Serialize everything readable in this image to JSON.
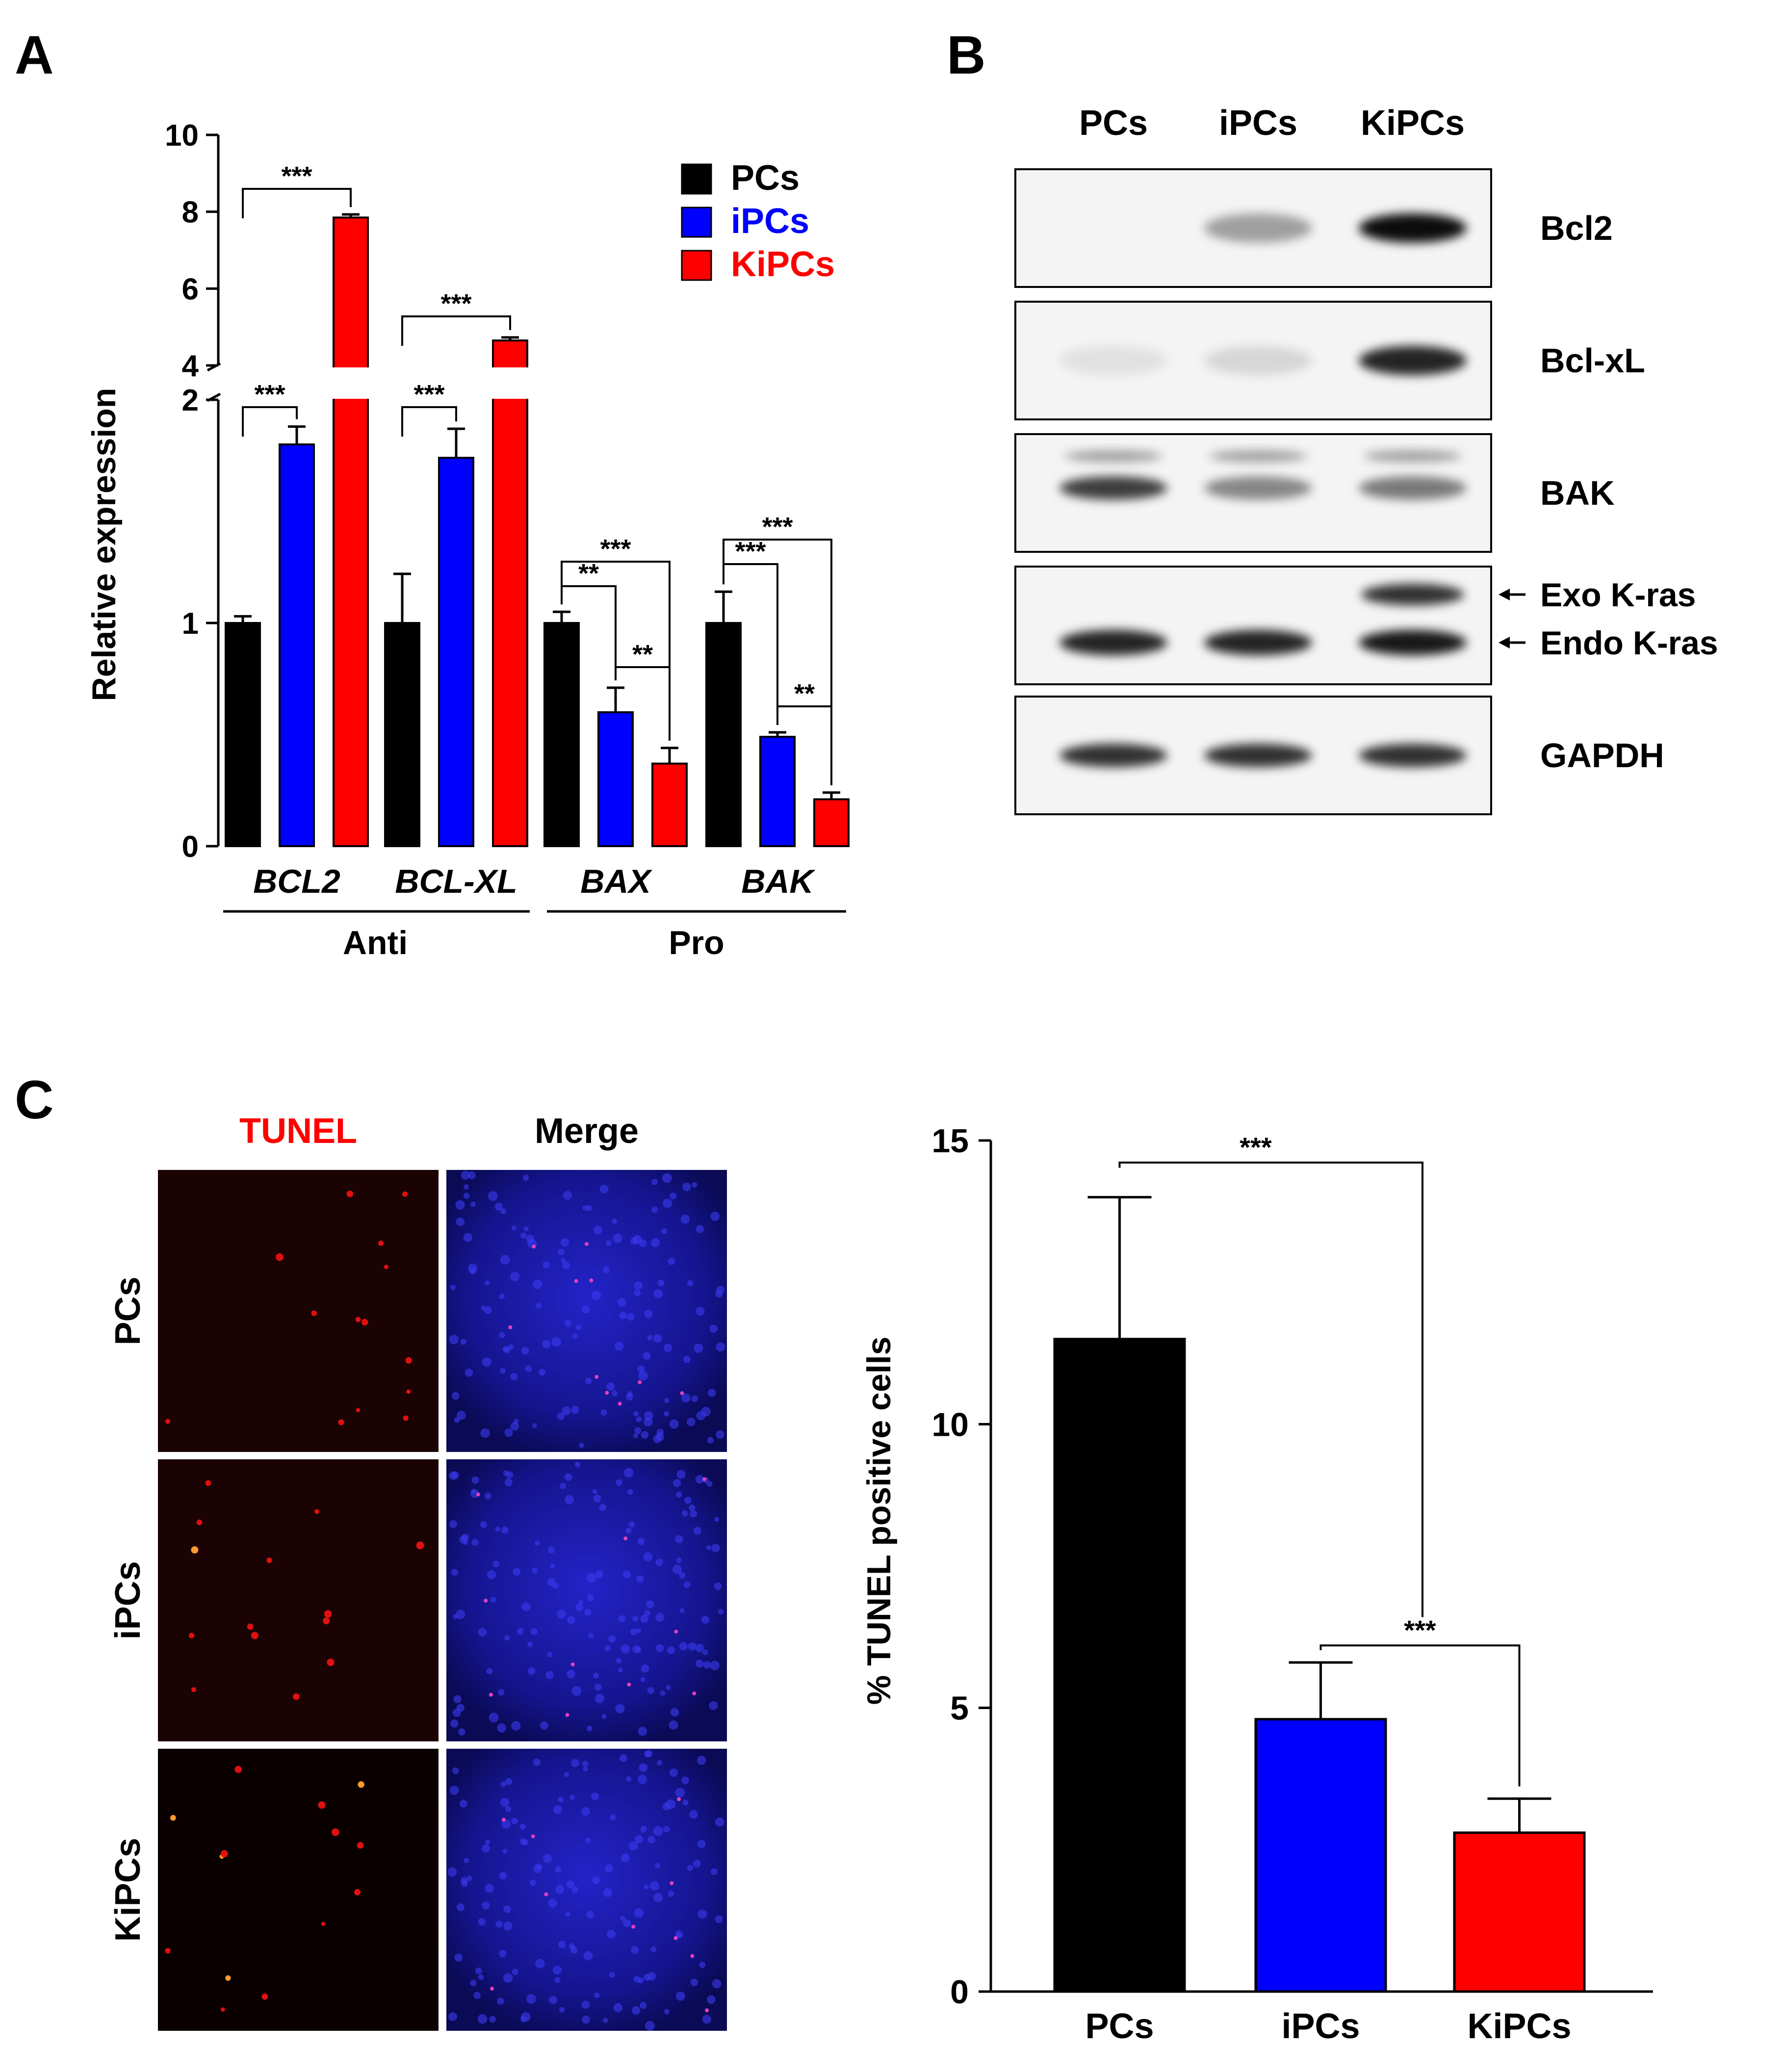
{
  "panels": {
    "a": "A",
    "b": "B",
    "c": "C"
  },
  "colors": {
    "PCs": "#000000",
    "iPCs": "#0000ff",
    "KiPCs": "#ff0000"
  },
  "chart_data": [
    {
      "panel": "A",
      "type": "bar",
      "ylabel": "Relative expression",
      "y_axis": {
        "broken": true,
        "lower_segment": {
          "range": [
            0,
            2
          ],
          "ticks": [
            "0",
            "1",
            "2"
          ]
        },
        "upper_segment": {
          "range": [
            4,
            10
          ],
          "ticks": [
            "4",
            "6",
            "8",
            "10"
          ]
        }
      },
      "legend": {
        "placement": "top-right",
        "entries": [
          "PCs",
          "iPCs",
          "KiPCs"
        ]
      },
      "categories": [
        "BCL2",
        "BCL-XL",
        "BAX",
        "BAK"
      ],
      "groups": [
        {
          "label": "Anti",
          "categories": [
            "BCL2",
            "BCL-XL"
          ]
        },
        {
          "label": "Pro",
          "categories": [
            "BAX",
            "BAK"
          ]
        }
      ],
      "series": [
        {
          "name": "PCs",
          "values": [
            1.0,
            1.0,
            1.0,
            1.0
          ],
          "errors": [
            0.03,
            0.22,
            0.05,
            0.14
          ]
        },
        {
          "name": "iPCs",
          "values": [
            1.8,
            1.74,
            0.6,
            0.49
          ],
          "errors": [
            0.08,
            0.13,
            0.11,
            0.02
          ]
        },
        {
          "name": "KiPCs",
          "values": [
            7.85,
            4.65,
            0.37,
            0.21
          ],
          "errors": [
            0.08,
            0.08,
            0.07,
            0.03
          ]
        }
      ],
      "significance": [
        {
          "category": "BCL2",
          "between": [
            "PCs",
            "iPCs"
          ],
          "label": "***"
        },
        {
          "category": "BCL2",
          "between": [
            "PCs",
            "KiPCs"
          ],
          "label": "***"
        },
        {
          "category": "BCL-XL",
          "between": [
            "PCs",
            "iPCs"
          ],
          "label": "***"
        },
        {
          "category": "BCL-XL",
          "between": [
            "PCs",
            "KiPCs"
          ],
          "label": "***"
        },
        {
          "category": "BAX",
          "between": [
            "PCs",
            "iPCs"
          ],
          "label": "**"
        },
        {
          "category": "BAX",
          "between": [
            "PCs",
            "KiPCs"
          ],
          "label": "***"
        },
        {
          "category": "BAX",
          "between": [
            "iPCs",
            "KiPCs"
          ],
          "label": "**"
        },
        {
          "category": "BAK",
          "between": [
            "PCs",
            "iPCs"
          ],
          "label": "***"
        },
        {
          "category": "BAK",
          "between": [
            "PCs",
            "KiPCs"
          ],
          "label": "***"
        },
        {
          "category": "BAK",
          "between": [
            "iPCs",
            "KiPCs"
          ],
          "label": "**"
        }
      ]
    },
    {
      "panel": "C",
      "type": "bar",
      "ylabel": "% TUNEL positive cells",
      "ylim": [
        0,
        15
      ],
      "yticks": [
        "0",
        "5",
        "10",
        "15"
      ],
      "categories": [
        "PCs",
        "iPCs",
        "KiPCs"
      ],
      "values": [
        11.5,
        4.8,
        2.8
      ],
      "errors": [
        2.5,
        1.0,
        0.6
      ],
      "significance": [
        {
          "between": [
            "PCs",
            "iPCs"
          ],
          "label": "***"
        },
        {
          "between": [
            "iPCs",
            "KiPCs"
          ],
          "label": "***"
        }
      ]
    }
  ],
  "western_blot": {
    "lanes": [
      "PCs",
      "iPCs",
      "KiPCs"
    ],
    "rows": [
      {
        "labels": [
          "Bcl2"
        ],
        "bands": [
          0.02,
          0.35,
          0.95
        ]
      },
      {
        "labels": [
          "Bcl-xL"
        ],
        "bands": [
          0.08,
          0.12,
          0.85
        ]
      },
      {
        "labels": [
          "BAK"
        ],
        "bands": [
          0.75,
          0.45,
          0.5
        ]
      },
      {
        "labels": [
          "Exo K-ras",
          "Endo K-ras"
        ],
        "arrows": true,
        "bands": [
          0.85,
          0.85,
          0.9
        ],
        "exo_bands": [
          0.0,
          0.0,
          0.8
        ]
      },
      {
        "labels": [
          "GAPDH"
        ],
        "bands": [
          0.8,
          0.8,
          0.8
        ]
      }
    ]
  },
  "microscopy": {
    "columns": [
      "TUNEL",
      "Merge"
    ],
    "rows": [
      "PCs",
      "iPCs",
      "KiPCs"
    ],
    "column_colors": [
      "#ff0000",
      "#000000"
    ]
  }
}
